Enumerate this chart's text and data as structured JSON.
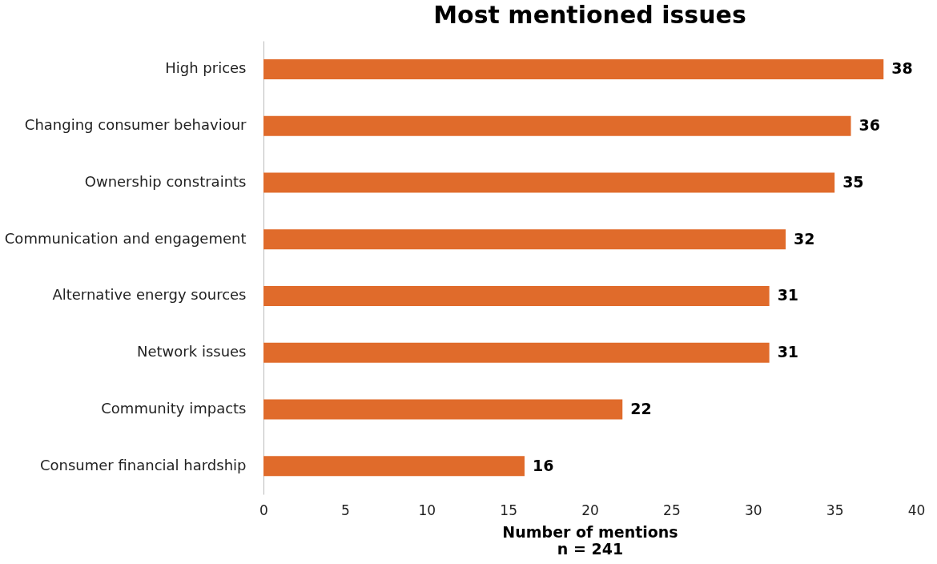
{
  "chart_data": {
    "type": "bar",
    "orientation": "horizontal",
    "title": "Most mentioned issues",
    "xlabel": "Number  of mentions",
    "annotations": [
      "n = 241"
    ],
    "categories": [
      "High prices",
      "Changing consumer behaviour",
      "Ownership constraints",
      "Communication and engagement",
      "Alternative energy sources",
      "Network issues",
      "Community impacts",
      "Consumer financial hardship"
    ],
    "values": [
      38,
      36,
      35,
      32,
      31,
      31,
      22,
      16
    ],
    "color": "#e06b2b",
    "xlim": [
      0,
      40
    ],
    "xticks": [
      0,
      5,
      10,
      15,
      20,
      25,
      30,
      35,
      40
    ],
    "data_labels": true,
    "grid": false
  }
}
